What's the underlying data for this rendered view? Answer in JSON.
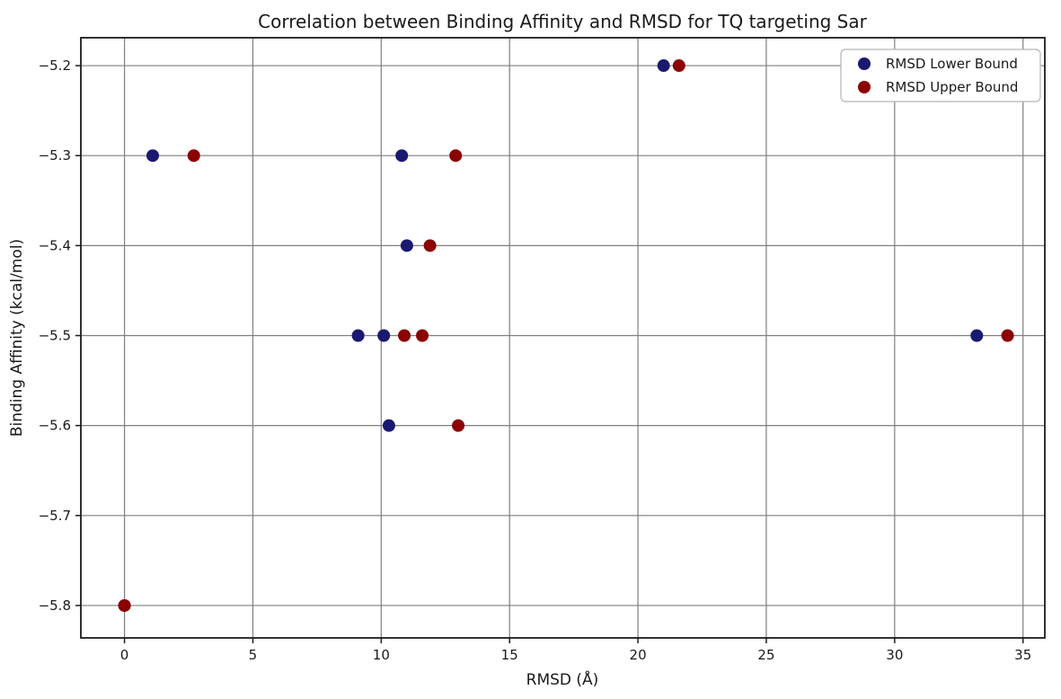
{
  "chart_data": {
    "type": "scatter",
    "title": "Correlation between Binding Affinity and RMSD for TQ targeting Sar",
    "xlabel": "RMSD (Å)",
    "ylabel": "Binding Affinity (kcal/mol)",
    "xlim": [
      -1.7,
      35.85
    ],
    "ylim": [
      -5.836,
      -5.169
    ],
    "grid": true,
    "legend_position": "upper right",
    "x_ticks": [
      0,
      5,
      10,
      15,
      20,
      25,
      30,
      35
    ],
    "x_tick_labels": [
      "0",
      "5",
      "10",
      "15",
      "20",
      "25",
      "30",
      "35"
    ],
    "y_ticks": [
      -5.2,
      -5.3,
      -5.4,
      -5.5,
      -5.6,
      -5.7,
      -5.8
    ],
    "y_tick_labels": [
      "−5.2",
      "−5.3",
      "−5.4",
      "−5.5",
      "−5.6",
      "−5.7",
      "−5.8"
    ],
    "series": [
      {
        "name": "RMSD Lower Bound",
        "color": "#191970",
        "points": [
          [
            0,
            -5.8
          ],
          [
            1.1,
            -5.3
          ],
          [
            9.1,
            -5.5
          ],
          [
            10.1,
            -5.5
          ],
          [
            10.3,
            -5.6
          ],
          [
            10.8,
            -5.3
          ],
          [
            11.0,
            -5.4
          ],
          [
            21.0,
            -5.2
          ],
          [
            33.2,
            -5.5
          ]
        ]
      },
      {
        "name": "RMSD Upper Bound",
        "color": "#8b0000",
        "points": [
          [
            0,
            -5.8
          ],
          [
            2.7,
            -5.3
          ],
          [
            10.9,
            -5.5
          ],
          [
            11.6,
            -5.5
          ],
          [
            13.0,
            -5.6
          ],
          [
            12.9,
            -5.3
          ],
          [
            11.9,
            -5.4
          ],
          [
            21.6,
            -5.2
          ],
          [
            34.4,
            -5.5
          ]
        ]
      }
    ],
    "colors": {
      "grid": "#7f7f7f",
      "axis_border": "#1c1c1c",
      "legend_border": "#b5b5b5",
      "background": "#ffffff"
    }
  }
}
